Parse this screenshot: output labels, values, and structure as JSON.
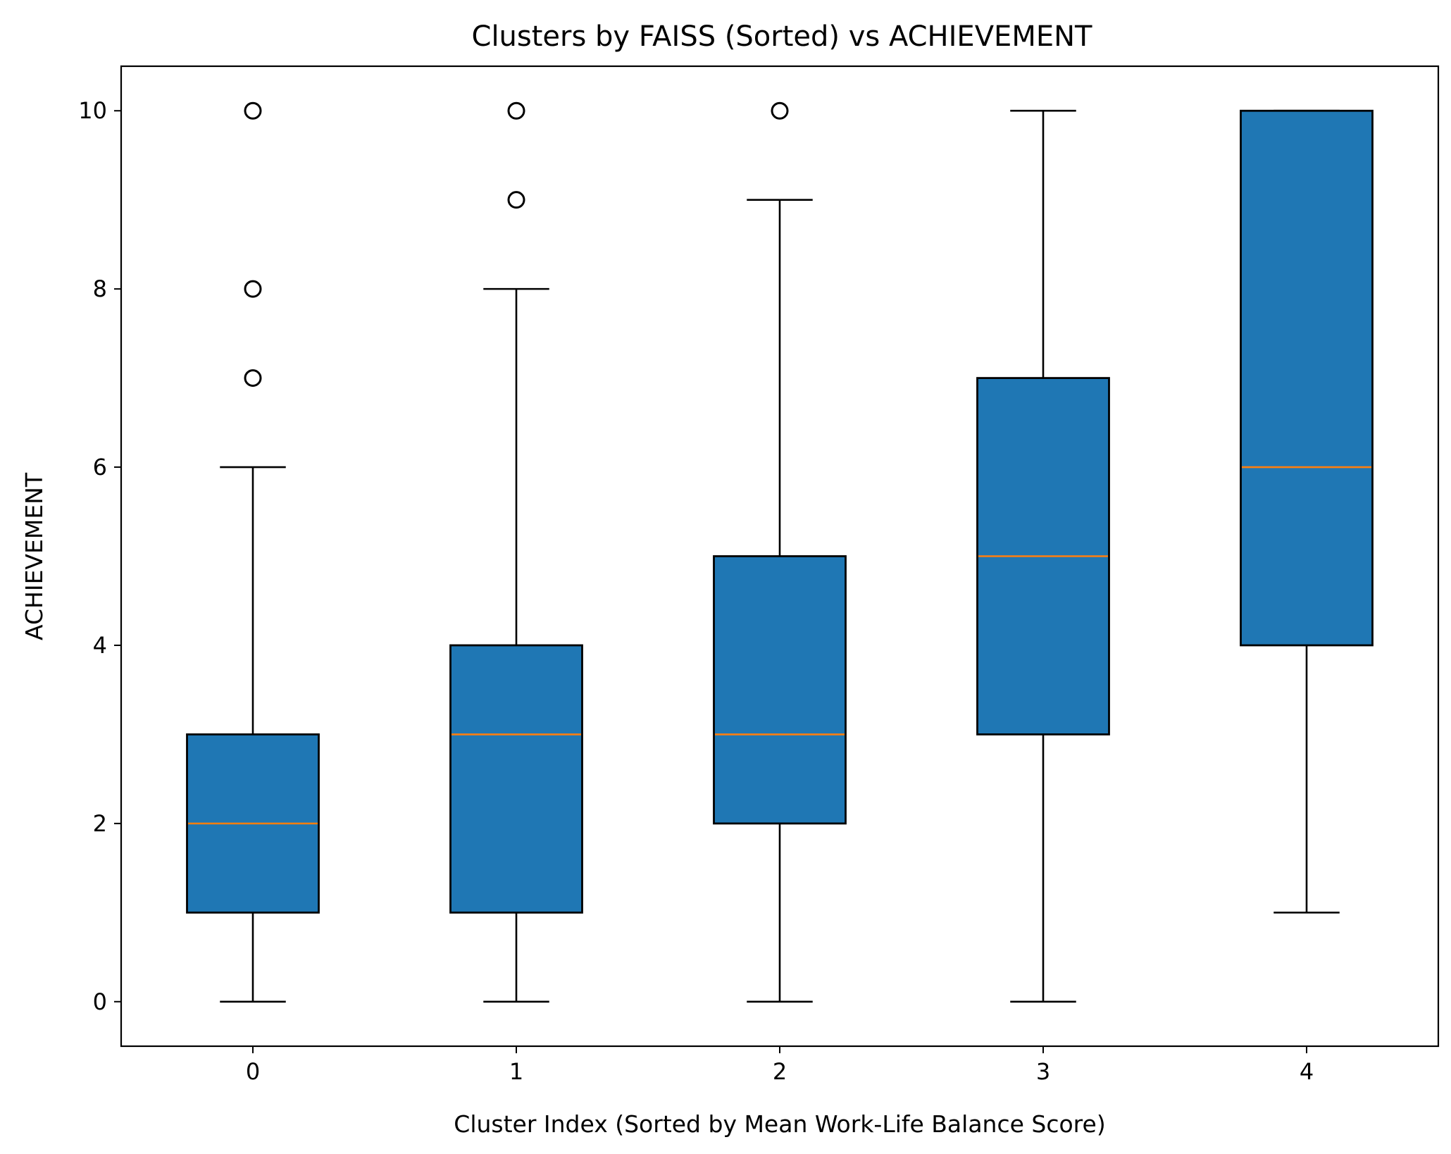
{
  "chart_data": {
    "type": "box",
    "title": "Clusters by FAISS (Sorted) vs ACHIEVEMENT",
    "xlabel": "Cluster Index (Sorted by Mean Work-Life Balance Score)",
    "ylabel": "ACHIEVEMENT",
    "categories": [
      "0",
      "1",
      "2",
      "3",
      "4"
    ],
    "ylim": [
      -0.5,
      10.5
    ],
    "yticks": [
      0,
      2,
      4,
      6,
      8,
      10
    ],
    "grid": false,
    "colors": {
      "box_fill": "#1f77b4",
      "median": "#ff7f0e",
      "edge": "#000000"
    },
    "boxes": [
      {
        "category": "0",
        "whisker_low": 0,
        "q1": 1,
        "median": 2,
        "q3": 3,
        "whisker_high": 6,
        "outliers": [
          7,
          8,
          10
        ]
      },
      {
        "category": "1",
        "whisker_low": 0,
        "q1": 1,
        "median": 3,
        "q3": 4,
        "whisker_high": 8,
        "outliers": [
          9,
          10
        ]
      },
      {
        "category": "2",
        "whisker_low": 0,
        "q1": 2,
        "median": 3,
        "q3": 5,
        "whisker_high": 9,
        "outliers": [
          10
        ]
      },
      {
        "category": "3",
        "whisker_low": 0,
        "q1": 3,
        "median": 5,
        "q3": 7,
        "whisker_high": 10,
        "outliers": []
      },
      {
        "category": "4",
        "whisker_low": 1,
        "q1": 4,
        "median": 6,
        "q3": 10,
        "whisker_high": 10,
        "outliers": []
      }
    ]
  }
}
